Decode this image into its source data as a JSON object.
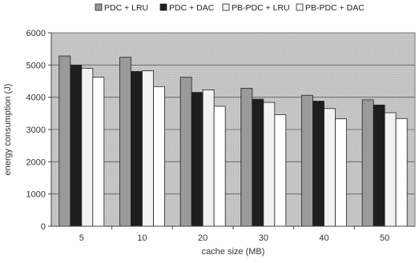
{
  "chart_data": {
    "type": "bar",
    "categories": [
      "5",
      "10",
      "20",
      "30",
      "40",
      "50"
    ],
    "series": [
      {
        "name": "PDC + LRU",
        "values": [
          5280,
          5240,
          4620,
          4280,
          4060,
          3920
        ],
        "color": "#9a9a9a"
      },
      {
        "name": "PDC + DAC",
        "values": [
          5000,
          4800,
          4150,
          3940,
          3880,
          3760
        ],
        "color": "#1e1e1e"
      },
      {
        "name": "PB-PDC + LRU",
        "values": [
          4900,
          4820,
          4230,
          3840,
          3650,
          3520
        ],
        "color": "#f2f2f2"
      },
      {
        "name": "PB-PDC + DAC",
        "values": [
          4620,
          4330,
          3720,
          3460,
          3330,
          3340
        ],
        "color": "#ffffff"
      }
    ],
    "xlabel": "cache size (MB)",
    "ylabel": "energy consumption (J)",
    "ylim": [
      0,
      6000
    ],
    "yticks": [
      "0",
      "1000",
      "2000",
      "3000",
      "4000",
      "5000",
      "6000"
    ],
    "grid": true,
    "legend_position": "top",
    "plot_background": "#c8c8c8"
  }
}
